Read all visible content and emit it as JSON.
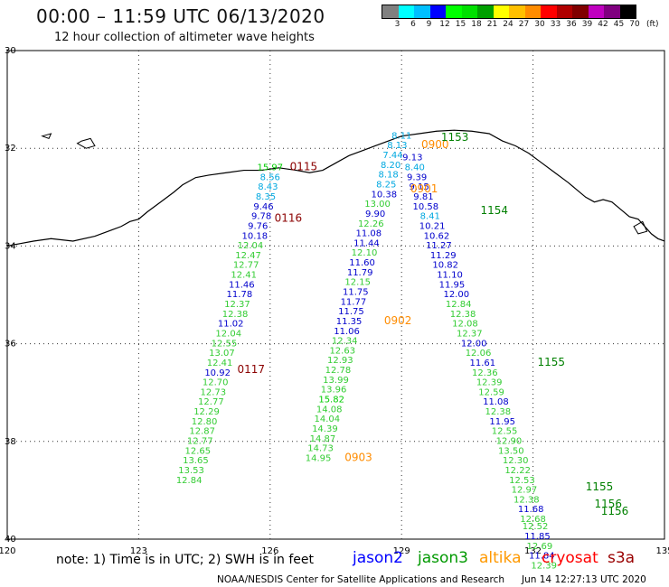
{
  "header": {
    "title": "00:00 – 11:59 UTC 06/13/2020",
    "subtitle": "12 hour collection of altimeter wave heights"
  },
  "legend": {
    "colors": [
      "#808080",
      "#00ffff",
      "#00bfff",
      "#0000ff",
      "#00ff00",
      "#00e000",
      "#00a000",
      "#ffff00",
      "#ffc000",
      "#ff8c00",
      "#ff0000",
      "#b00000",
      "#800000",
      "#c000c0",
      "#800080",
      "#000000"
    ],
    "labels": [
      "3",
      "6",
      "9",
      "12",
      "15",
      "18",
      "21",
      "24",
      "27",
      "30",
      "33",
      "36",
      "39",
      "42",
      "45",
      "70"
    ],
    "unit": "(ft)"
  },
  "axes": {
    "lon_ticks": [
      "120",
      "123",
      "126",
      "129",
      "132",
      "135"
    ],
    "lat_ticks": [
      "30",
      "32",
      "34",
      "36",
      "38",
      "40"
    ]
  },
  "tracks": [
    {
      "id": "0115",
      "label": "0115",
      "color": "#8b0000",
      "points": [
        [
          "15.97",
          "#00cc00",
          126.0,
          32.45
        ],
        [
          "8.56",
          "#00a8e0",
          126.0,
          32.65
        ],
        [
          "8.43",
          "#00a8e0",
          125.95,
          32.85
        ],
        [
          "8.35",
          "#00a8e0",
          125.9,
          33.05
        ],
        [
          "9.46",
          "#0000cc",
          125.85,
          33.25
        ],
        [
          "9.78",
          "#0000cc",
          125.8,
          33.45
        ],
        [
          "9.76",
          "#0000cc",
          125.72,
          33.65
        ],
        [
          "10.18",
          "#0000cc",
          125.65,
          33.85
        ],
        [
          "12.04",
          "#33cc33",
          125.55,
          34.05
        ],
        [
          "12.47",
          "#33cc33",
          125.5,
          34.25
        ],
        [
          "12.77",
          "#33cc33",
          125.45,
          34.45
        ],
        [
          "12.41",
          "#33cc33",
          125.4,
          34.65
        ],
        [
          "11.46",
          "#0000cc",
          125.35,
          34.85
        ],
        [
          "11.78",
          "#0000cc",
          125.3,
          35.05
        ],
        [
          "12.37",
          "#33cc33",
          125.25,
          35.25
        ],
        [
          "12.38",
          "#33cc33",
          125.2,
          35.45
        ],
        [
          "11.02",
          "#0000cc",
          125.1,
          35.65
        ],
        [
          "12.04",
          "#33cc33",
          125.05,
          35.85
        ],
        [
          "12.55",
          "#33cc33",
          124.95,
          36.05
        ],
        [
          "13.07",
          "#33cc33",
          124.9,
          36.25
        ],
        [
          "12.41",
          "#33cc33",
          124.85,
          36.45
        ],
        [
          "10.92",
          "#0000cc",
          124.8,
          36.65
        ],
        [
          "12.70",
          "#33cc33",
          124.75,
          36.85
        ],
        [
          "12.73",
          "#33cc33",
          124.7,
          37.05
        ],
        [
          "12.77",
          "#33cc33",
          124.65,
          37.25
        ],
        [
          "12.29",
          "#33cc33",
          124.55,
          37.45
        ],
        [
          "12.80",
          "#33cc33",
          124.5,
          37.65
        ],
        [
          "12.87",
          "#33cc33",
          124.45,
          37.85
        ],
        [
          "12.77",
          "#33cc33",
          124.4,
          38.05
        ],
        [
          "12.65",
          "#33cc33",
          124.35,
          38.25
        ],
        [
          "13.65",
          "#33cc33",
          124.3,
          38.45
        ],
        [
          "13.53",
          "#33cc33",
          124.2,
          38.65
        ],
        [
          "12.84",
          "#33cc33",
          124.15,
          38.85
        ]
      ]
    },
    {
      "id": "0902",
      "label": "0902",
      "color": "#ff8c00",
      "points": [
        [
          "8.11",
          "#00a8e0",
          129.0,
          31.8
        ],
        [
          "8.13",
          "#00a8e0",
          128.9,
          32.0
        ],
        [
          "7.44",
          "#00a8e0",
          128.8,
          32.2
        ],
        [
          "8.20",
          "#00a8e0",
          128.75,
          32.4
        ],
        [
          "8.18",
          "#00a8e0",
          128.7,
          32.6
        ],
        [
          "8.25",
          "#00a8e0",
          128.65,
          32.8
        ],
        [
          "10.38",
          "#0000cc",
          128.6,
          33.0
        ],
        [
          "13.00",
          "#33cc33",
          128.45,
          33.2
        ],
        [
          "9.90",
          "#0000cc",
          128.4,
          33.4
        ],
        [
          "12.26",
          "#33cc33",
          128.3,
          33.6
        ],
        [
          "11.08",
          "#0000cc",
          128.25,
          33.8
        ],
        [
          "11.44",
          "#0000cc",
          128.2,
          34.0
        ],
        [
          "12.10",
          "#33cc33",
          128.15,
          34.2
        ],
        [
          "11.60",
          "#0000cc",
          128.1,
          34.4
        ],
        [
          "11.79",
          "#0000cc",
          128.05,
          34.6
        ],
        [
          "12.15",
          "#33cc33",
          128.0,
          34.8
        ],
        [
          "11.75",
          "#0000cc",
          127.95,
          35.0
        ],
        [
          "11.77",
          "#0000cc",
          127.9,
          35.2
        ],
        [
          "11.75",
          "#0000cc",
          127.85,
          35.4
        ],
        [
          "11.35",
          "#0000cc",
          127.8,
          35.6
        ],
        [
          "11.06",
          "#0000cc",
          127.75,
          35.8
        ],
        [
          "12.34",
          "#33cc33",
          127.7,
          36.0
        ],
        [
          "12.63",
          "#33cc33",
          127.65,
          36.2
        ],
        [
          "12.93",
          "#33cc33",
          127.6,
          36.4
        ],
        [
          "12.78",
          "#33cc33",
          127.55,
          36.6
        ],
        [
          "13.99",
          "#33cc33",
          127.5,
          36.8
        ],
        [
          "13.96",
          "#33cc33",
          127.45,
          37.0
        ],
        [
          "15.82",
          "#00cc00",
          127.4,
          37.2
        ],
        [
          "14.08",
          "#33cc33",
          127.35,
          37.4
        ],
        [
          "14.04",
          "#33cc33",
          127.3,
          37.6
        ],
        [
          "14.39",
          "#33cc33",
          127.25,
          37.8
        ],
        [
          "14.87",
          "#33cc33",
          127.2,
          38.0
        ],
        [
          "14.73",
          "#33cc33",
          127.15,
          38.2
        ],
        [
          "14.95",
          "#33cc33",
          127.1,
          38.4
        ]
      ]
    },
    {
      "id": "1154",
      "label": "1154",
      "color": "#008000",
      "points": [
        [
          "9.13",
          "#0000cc",
          129.25,
          32.25
        ],
        [
          "8.40",
          "#00a8e0",
          129.3,
          32.45
        ],
        [
          "9.39",
          "#0000cc",
          129.35,
          32.65
        ],
        [
          "9.15",
          "#0000cc",
          129.4,
          32.85
        ],
        [
          "9.81",
          "#0000cc",
          129.5,
          33.05
        ],
        [
          "10.58",
          "#0000cc",
          129.55,
          33.25
        ],
        [
          "8.41",
          "#00a8e0",
          129.65,
          33.45
        ],
        [
          "10.21",
          "#0000cc",
          129.7,
          33.65
        ],
        [
          "10.62",
          "#0000cc",
          129.8,
          33.85
        ],
        [
          "11.27",
          "#0000cc",
          129.85,
          34.05
        ],
        [
          "11.29",
          "#0000cc",
          129.95,
          34.25
        ],
        [
          "10.82",
          "#0000cc",
          130.0,
          34.45
        ],
        [
          "11.10",
          "#0000cc",
          130.1,
          34.65
        ],
        [
          "11.95",
          "#0000cc",
          130.15,
          34.85
        ],
        [
          "12.00",
          "#0000cc",
          130.25,
          35.05
        ],
        [
          "12.84",
          "#33cc33",
          130.3,
          35.25
        ],
        [
          "12.38",
          "#33cc33",
          130.4,
          35.45
        ],
        [
          "12.08",
          "#33cc33",
          130.45,
          35.65
        ],
        [
          "12.37",
          "#33cc33",
          130.55,
          35.85
        ],
        [
          "12.00",
          "#0000cc",
          130.65,
          36.05
        ],
        [
          "12.06",
          "#33cc33",
          130.75,
          36.25
        ],
        [
          "11.61",
          "#0000cc",
          130.85,
          36.45
        ],
        [
          "12.36",
          "#33cc33",
          130.9,
          36.65
        ],
        [
          "12.39",
          "#33cc33",
          131.0,
          36.85
        ],
        [
          "12.59",
          "#33cc33",
          131.05,
          37.05
        ],
        [
          "11.08",
          "#0000cc",
          131.15,
          37.25
        ],
        [
          "12.38",
          "#33cc33",
          131.2,
          37.45
        ],
        [
          "11.95",
          "#0000cc",
          131.3,
          37.65
        ],
        [
          "12.55",
          "#33cc33",
          131.35,
          37.85
        ],
        [
          "12.90",
          "#33cc33",
          131.45,
          38.05
        ],
        [
          "13.50",
          "#33cc33",
          131.5,
          38.25
        ],
        [
          "12.30",
          "#33cc33",
          131.6,
          38.45
        ],
        [
          "12.22",
          "#33cc33",
          131.65,
          38.65
        ],
        [
          "12.53",
          "#33cc33",
          131.75,
          38.85
        ],
        [
          "12.97",
          "#33cc33",
          131.8,
          39.05
        ],
        [
          "12.38",
          "#33cc33",
          131.85,
          39.25
        ],
        [
          "11.68",
          "#0000cc",
          131.95,
          39.45
        ],
        [
          "12.68",
          "#33cc33",
          132.0,
          39.65
        ],
        [
          "12.52",
          "#33cc33",
          132.05,
          39.8
        ],
        [
          "11.85",
          "#0000cc",
          132.1,
          40.0
        ],
        [
          "12.69",
          "#33cc33",
          132.15,
          40.2
        ],
        [
          "11.84",
          "#0000cc",
          132.2,
          40.4
        ],
        [
          "12.39",
          "#33cc33",
          132.25,
          40.6
        ]
      ]
    }
  ],
  "track_labels": [
    {
      "text": "0115",
      "color": "#8b0000",
      "lon": 126.45,
      "lat": 32.45
    },
    {
      "text": "0116",
      "color": "#8b0000",
      "lon": 126.1,
      "lat": 33.5
    },
    {
      "text": "0117",
      "color": "#8b0000",
      "lon": 125.25,
      "lat": 36.6
    },
    {
      "text": "0900",
      "color": "#ff8c00",
      "lon": 129.45,
      "lat": 32.0
    },
    {
      "text": "0901",
      "color": "#ff8c00",
      "lon": 129.2,
      "lat": 32.9
    },
    {
      "text": "0902",
      "color": "#ff8c00",
      "lon": 128.6,
      "lat": 35.6
    },
    {
      "text": "0903",
      "color": "#ff8c00",
      "lon": 127.7,
      "lat": 38.4
    },
    {
      "text": "1153",
      "color": "#008000",
      "lon": 129.9,
      "lat": 31.85
    },
    {
      "text": "1154",
      "color": "#008000",
      "lon": 130.8,
      "lat": 33.35
    },
    {
      "text": "1155",
      "color": "#008000",
      "lon": 132.1,
      "lat": 36.45
    },
    {
      "text": "1155",
      "color": "#008000",
      "lon": 133.2,
      "lat": 39.0
    },
    {
      "text": "1156",
      "color": "#008000",
      "lon": 133.4,
      "lat": 39.35
    },
    {
      "text": "1156",
      "color": "#008000",
      "lon": 133.55,
      "lat": 39.5
    }
  ],
  "footer": {
    "note": "note: 1) Time is in UTC; 2) SWH is in feet",
    "satellites": [
      {
        "name": "jason2",
        "color": "#0000ff"
      },
      {
        "name": "jason3",
        "color": "#009900"
      },
      {
        "name": "altika",
        "color": "#ff9900"
      },
      {
        "name": "cryosat",
        "color": "#ff0000"
      },
      {
        "name": "s3a",
        "color": "#990000"
      }
    ],
    "credit": "NOAA/NESDIS Center for Satellite Applications and Research",
    "timestamp": "Jun 14 12:27:13 UTC 2020"
  }
}
